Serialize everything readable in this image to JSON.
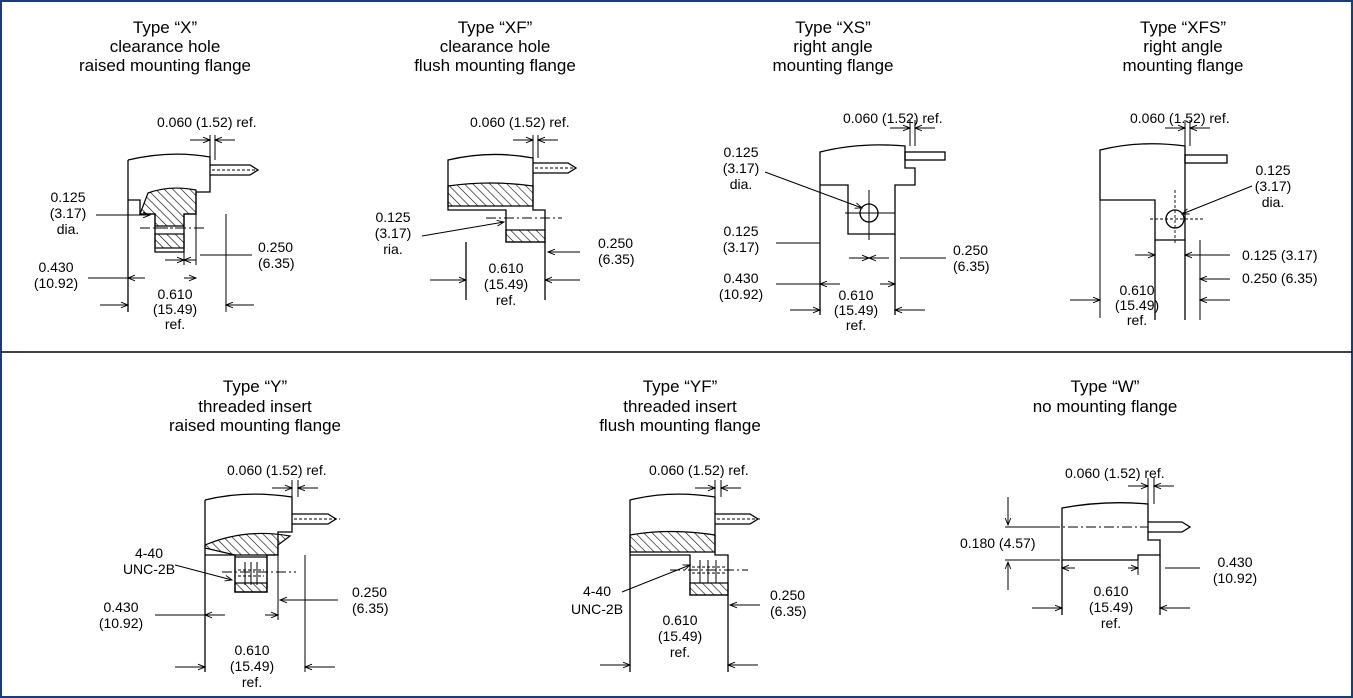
{
  "colors": {
    "frame": "#1a3d7a",
    "line": "#000000",
    "background": "#ffffff"
  },
  "top_row": [
    {
      "title": [
        "Type “X”",
        "clearance hole",
        "raised mounting flange"
      ],
      "labels": {
        "top_ref": "0.060 (1.52) ref.",
        "hole_1": "0.125",
        "hole_2": "(3.17)",
        "hole_3": "dia.",
        "thick_1": "0.250",
        "thick_2": "(6.35)",
        "left_1": "0.430",
        "left_2": "(10.92)",
        "width_1": "0.610",
        "width_2": "(15.49)",
        "width_3": "ref."
      }
    },
    {
      "title": [
        "Type “XF”",
        "clearance hole",
        "flush mounting flange"
      ],
      "labels": {
        "top_ref": "0.060 (1.52) ref.",
        "hole_1": "0.125",
        "hole_2": "(3.17)",
        "hole_3": "ria.",
        "thick_1": "0.250",
        "thick_2": "(6.35)",
        "width_1": "0.610",
        "width_2": "(15.49)",
        "width_3": "ref."
      }
    },
    {
      "title": [
        "Type “XS”",
        "right angle",
        "mounting flange"
      ],
      "labels": {
        "top_ref": "0.060 (1.52) ref.",
        "hole_1": "0.125",
        "hole_2": "(3.17)",
        "hole_3": "dia.",
        "off_1": "0.125",
        "off_2": "(3.17)",
        "left_1": "0.430",
        "left_2": "(10.92)",
        "thick_1": "0.250",
        "thick_2": "(6.35)",
        "width_1": "0.610",
        "width_2": "(15.49)",
        "width_3": "ref."
      }
    },
    {
      "title": [
        "Type “XFS”",
        "right angle",
        "mounting flange"
      ],
      "labels": {
        "top_ref": "0.060 (1.52) ref.",
        "hole_1": "0.125",
        "hole_2": "(3.17)",
        "hole_3": "dia.",
        "off": "0.125 (3.17)",
        "thick": "0.250 (6.35)",
        "width_1": "0.610",
        "width_2": "(15.49)",
        "width_3": "ref."
      }
    }
  ],
  "bottom_row": [
    {
      "title": [
        "Type “Y”",
        "threaded insert",
        "raised mounting flange"
      ],
      "labels": {
        "top_ref": "0.060 (1.52) ref.",
        "thread_1": "4-40",
        "thread_2": "UNC-2B",
        "thick_1": "0.250",
        "thick_2": "(6.35)",
        "left_1": "0.430",
        "left_2": "(10.92)",
        "width_1": "0.610",
        "width_2": "(15.49)",
        "width_3": "ref."
      }
    },
    {
      "title": [
        "Type “YF”",
        "threaded insert",
        "flush mounting flange"
      ],
      "labels": {
        "top_ref": "0.060 (1.52) ref.",
        "thread_1": "4-40",
        "thread_2": "UNC-2B",
        "thick_1": "0.250",
        "thick_2": "(6.35)",
        "width_1": "0.610",
        "width_2": "(15.49)",
        "width_3": "ref."
      }
    },
    {
      "title": [
        "Type “W”",
        "no mounting flange"
      ],
      "labels": {
        "top_ref": "0.060 (1.52) ref.",
        "height": "0.180 (4.57)",
        "right_1": "0.430",
        "right_2": "(10.92)",
        "width_1": "0.610",
        "width_2": "(15.49)",
        "width_3": "ref."
      }
    }
  ]
}
